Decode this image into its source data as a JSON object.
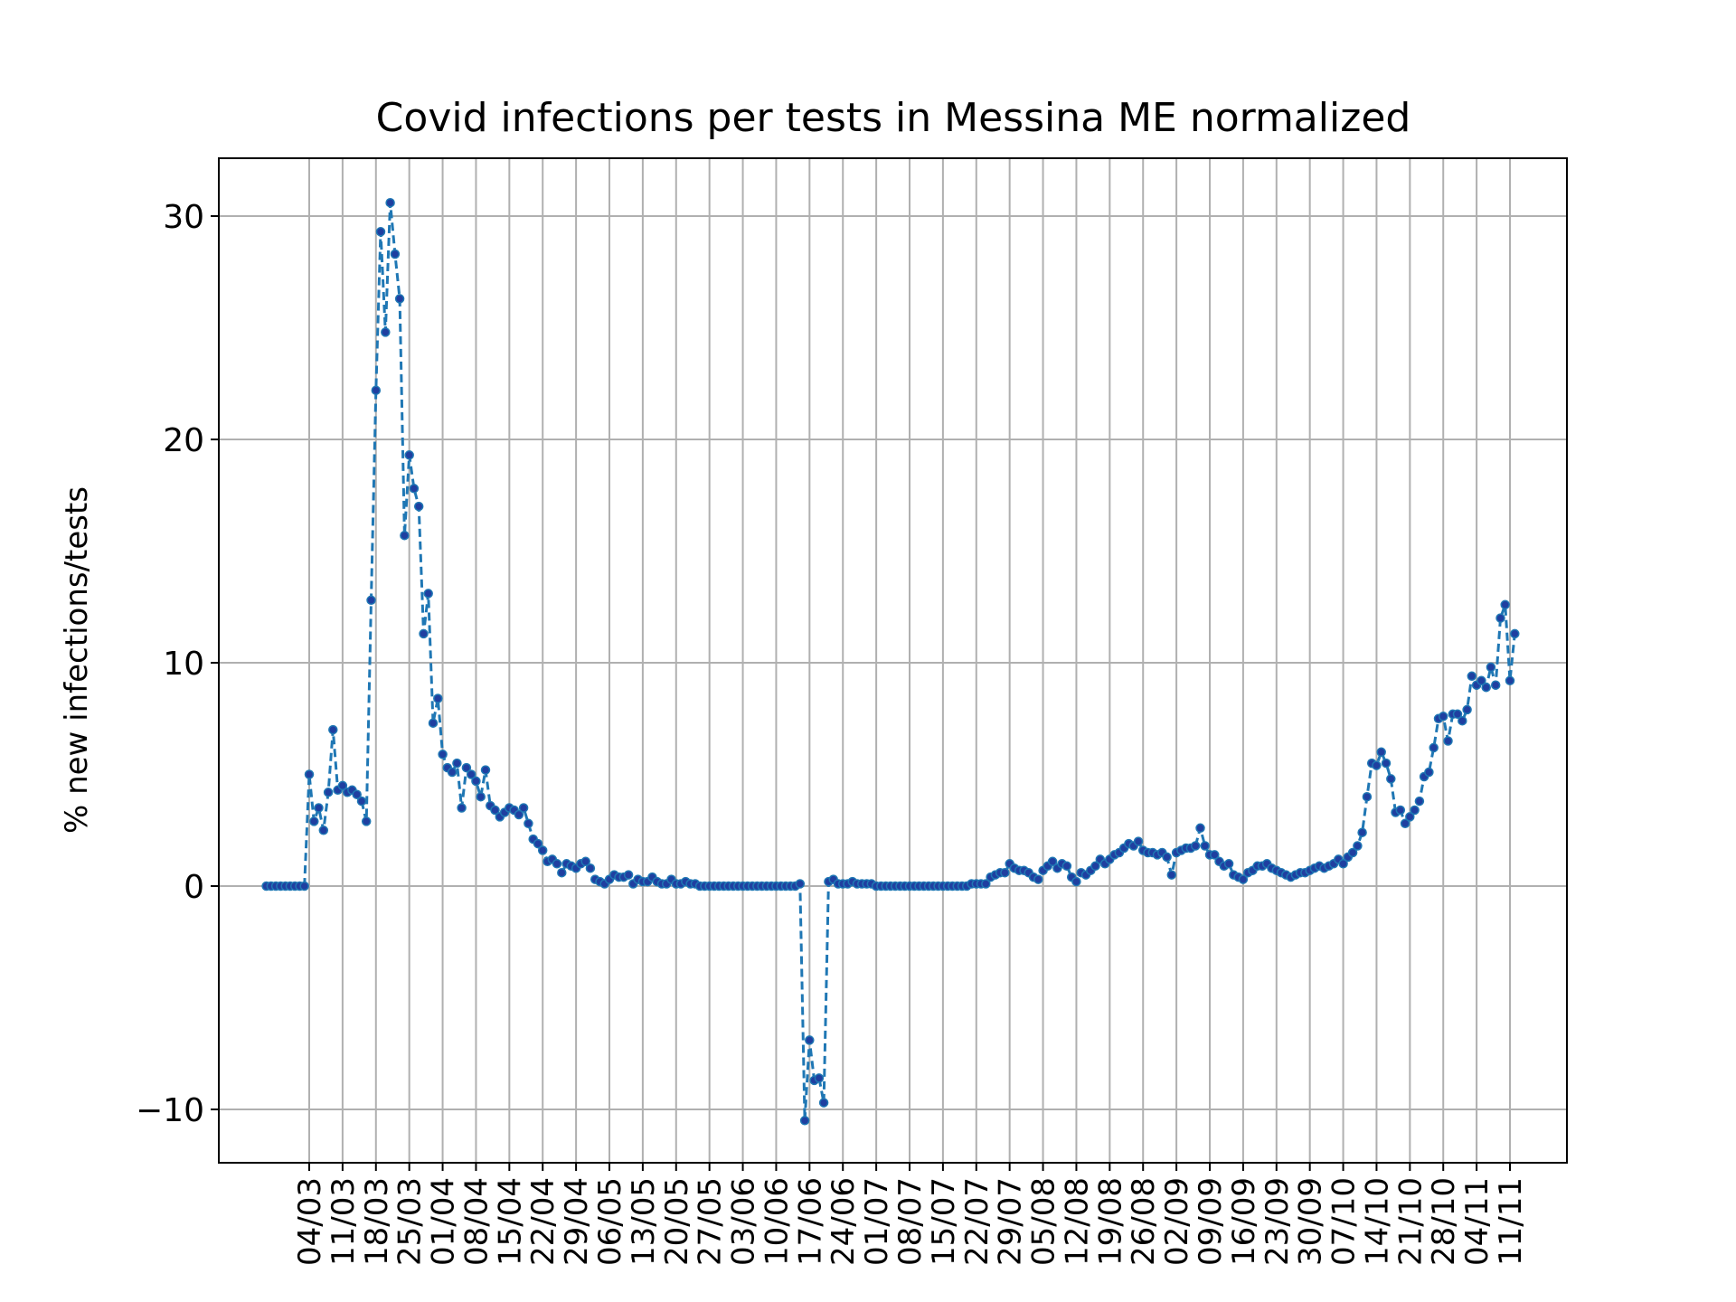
{
  "chart_data": {
    "type": "line",
    "title": "Covid infections per tests in Messina ME normalized",
    "xlabel": "",
    "ylabel": "% new infections/tests",
    "ylim": [
      -10.5,
      30.5
    ],
    "yticks": [
      -10,
      0,
      10,
      20,
      30
    ],
    "ytick_labels": [
      "−10",
      "0",
      "10",
      "20",
      "30"
    ],
    "x_start": "2020-02-24",
    "x_end": "2020-11-14",
    "xticks": [
      "2020-03-04",
      "2020-03-11",
      "2020-03-18",
      "2020-03-25",
      "2020-04-01",
      "2020-04-08",
      "2020-04-15",
      "2020-04-22",
      "2020-04-29",
      "2020-05-06",
      "2020-05-13",
      "2020-05-20",
      "2020-05-27",
      "2020-06-03",
      "2020-06-10",
      "2020-06-17",
      "2020-06-24",
      "2020-07-01",
      "2020-07-08",
      "2020-07-15",
      "2020-07-22",
      "2020-07-29",
      "2020-08-05",
      "2020-08-12",
      "2020-08-19",
      "2020-08-26",
      "2020-09-02",
      "2020-09-09",
      "2020-09-16",
      "2020-09-23",
      "2020-09-30",
      "2020-10-07",
      "2020-10-14",
      "2020-10-21",
      "2020-10-28",
      "2020-11-04",
      "2020-11-11"
    ],
    "xtick_labels": [
      "04/03",
      "11/03",
      "18/03",
      "25/03",
      "01/04",
      "08/04",
      "15/04",
      "22/04",
      "29/04",
      "06/05",
      "13/05",
      "20/05",
      "27/05",
      "03/06",
      "10/06",
      "17/06",
      "24/06",
      "01/07",
      "08/07",
      "15/07",
      "22/07",
      "29/07",
      "05/08",
      "12/08",
      "19/08",
      "26/08",
      "02/09",
      "09/09",
      "16/09",
      "23/09",
      "30/09",
      "07/10",
      "14/10",
      "21/10",
      "28/10",
      "04/11",
      "11/11"
    ],
    "grid": true,
    "legend": "none",
    "line_color": "#1f77b4",
    "marker_color": "#1f3fa0",
    "line_style": "dashed",
    "series": [
      {
        "x_start": "2020-02-24",
        "step_days": 1,
        "values": [
          0,
          0,
          0,
          0,
          0,
          0,
          0,
          0,
          0,
          5.0,
          2.9,
          3.5,
          2.5,
          4.2,
          7.0,
          4.3,
          4.5,
          4.2,
          4.3,
          4.1,
          3.8,
          2.9,
          12.8,
          22.2,
          29.3,
          24.8,
          30.6,
          28.3,
          26.3,
          15.7,
          19.3,
          17.8,
          17.0,
          11.3,
          13.1,
          7.3,
          8.4,
          5.9,
          5.3,
          5.1,
          5.5,
          3.5,
          5.3,
          5.0,
          4.7,
          4.0,
          5.2,
          3.6,
          3.4,
          3.1,
          3.3,
          3.5,
          3.4,
          3.2,
          3.5,
          2.8,
          2.1,
          1.9,
          1.6,
          1.1,
          1.2,
          1.0,
          0.6,
          1.0,
          0.9,
          0.8,
          1.0,
          1.1,
          0.8,
          0.3,
          0.2,
          0.1,
          0.3,
          0.5,
          0.4,
          0.4,
          0.5,
          0.1,
          0.3,
          0.2,
          0.2,
          0.4,
          0.2,
          0.1,
          0.1,
          0.3,
          0.1,
          0.1,
          0.2,
          0.1,
          0.1,
          0,
          0,
          0,
          0,
          0,
          0,
          0,
          0,
          0,
          0,
          0,
          0,
          0,
          0,
          0,
          0,
          0,
          0,
          0,
          0,
          0,
          0.1,
          -10.5,
          -6.9,
          -8.7,
          -8.6,
          -9.7,
          0.2,
          0.3,
          0.1,
          0.1,
          0.1,
          0.2,
          0.1,
          0.1,
          0.1,
          0.1,
          0,
          0,
          0,
          0,
          0,
          0,
          0,
          0,
          0,
          0,
          0,
          0,
          0,
          0,
          0,
          0,
          0,
          0,
          0,
          0,
          0.1,
          0.1,
          0.1,
          0.1,
          0.4,
          0.5,
          0.6,
          0.6,
          1.0,
          0.8,
          0.7,
          0.7,
          0.6,
          0.4,
          0.3,
          0.7,
          0.9,
          1.1,
          0.8,
          1.0,
          0.9,
          0.4,
          0.2,
          0.6,
          0.5,
          0.7,
          0.9,
          1.2,
          1.0,
          1.2,
          1.4,
          1.5,
          1.7,
          1.9,
          1.8,
          2.0,
          1.6,
          1.5,
          1.5,
          1.4,
          1.5,
          1.3,
          0.5,
          1.5,
          1.6,
          1.7,
          1.7,
          1.8,
          2.6,
          1.8,
          1.4,
          1.4,
          1.1,
          0.9,
          1.0,
          0.5,
          0.4,
          0.3,
          0.6,
          0.7,
          0.9,
          0.9,
          1.0,
          0.8,
          0.7,
          0.6,
          0.5,
          0.4,
          0.5,
          0.6,
          0.6,
          0.7,
          0.8,
          0.9,
          0.8,
          0.9,
          1.0,
          1.2,
          1.0,
          1.3,
          1.5,
          1.8,
          2.4,
          4.0,
          5.5,
          5.4,
          6.0,
          5.5,
          4.8,
          3.3,
          3.4,
          2.8,
          3.1,
          3.4,
          3.8,
          4.9,
          5.1,
          6.2,
          7.5,
          7.6,
          6.5,
          7.7,
          7.7,
          7.4,
          7.9,
          9.4,
          9.0,
          9.2,
          8.9,
          9.8,
          9.0,
          12.0,
          12.6,
          9.2,
          11.3
        ]
      }
    ]
  }
}
